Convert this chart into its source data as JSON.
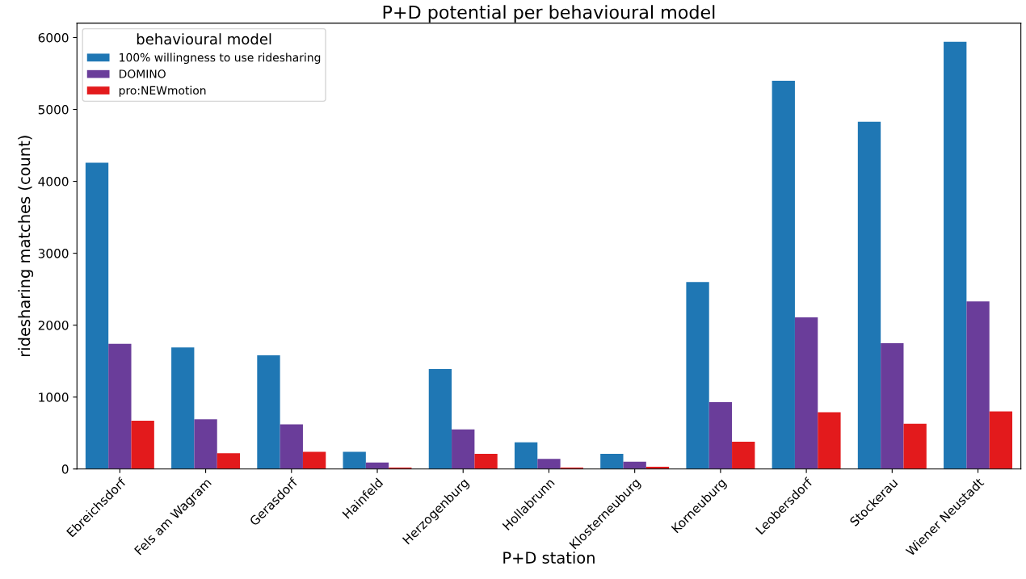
{
  "chart_data": {
    "type": "bar",
    "title": "P+D potential per behavioural model",
    "xlabel": "P+D station",
    "ylabel": "ridesharing matches (count)",
    "legend_title": "behavioural model",
    "legend": "top left",
    "grid": false,
    "categories": [
      "Ebreichsdorf",
      "Fels am Wagram",
      "Gerasdorf",
      "Hainfeld",
      "Herzogenburg",
      "Hollabrunn",
      "Klosterneuburg",
      "Korneuburg",
      "Leobersdorf",
      "Stockerau",
      "Wiener Neustadt"
    ],
    "ylim": [
      0,
      6200
    ],
    "yticks": [
      0,
      1000,
      2000,
      3000,
      4000,
      5000,
      6000
    ],
    "series": [
      {
        "name": "100% willingness to use ridesharing",
        "color": "#1f77b4",
        "values": [
          4260,
          1690,
          1580,
          240,
          1390,
          370,
          210,
          2600,
          5400,
          4830,
          5940
        ]
      },
      {
        "name": "DOMINO",
        "color": "#6a3d9a",
        "values": [
          1740,
          690,
          620,
          90,
          550,
          140,
          100,
          930,
          2110,
          1750,
          2330
        ]
      },
      {
        "name": "pro:NEWmotion",
        "color": "#e31a1c",
        "values": [
          670,
          220,
          240,
          20,
          210,
          20,
          30,
          380,
          790,
          630,
          800
        ]
      }
    ]
  }
}
